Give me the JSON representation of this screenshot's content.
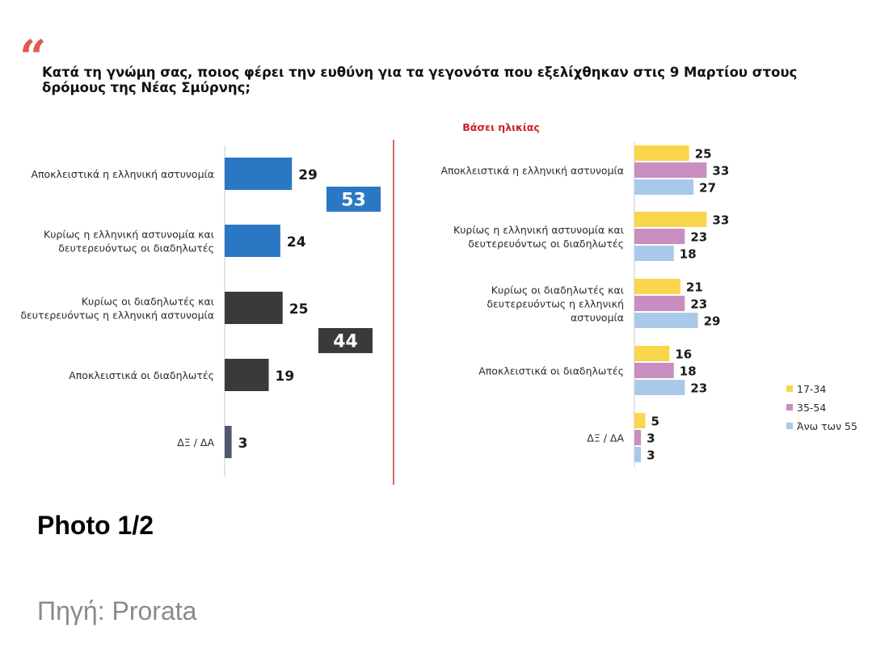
{
  "question": "Κατά τη γνώμη σας, ποιος φέρει την ευθύνη για τα γεγονότα που εξελίχθηκαν στις 9 Μαρτίου στους δρόμους της Νέας Σμύρνης;",
  "quote_mark": "“",
  "subhead": "Βάσει ηλικίας",
  "caption": "Photo 1/2",
  "source": "Πηγή: Prorata",
  "colors": {
    "blue": "#2a78c4",
    "dark": "#3a3a3a",
    "slate": "#4f5b6b",
    "series_17_34": "#f9d64b",
    "series_35_54": "#c98ec0",
    "series_55": "#a9c9ea",
    "accent_red": "#d0202a"
  },
  "chart_data": [
    {
      "type": "bar",
      "orientation": "horizontal",
      "categories": [
        [
          "Αποκλειστικά η ελληνική αστυνομία"
        ],
        [
          "Κυρίως η ελληνική αστυνομία και",
          "δευτερευόντως οι διαδηλωτές"
        ],
        [
          "Κυρίως οι διαδηλωτές και",
          "δευτερευόντως η ελληνική αστυνομία"
        ],
        [
          "Αποκλειστικά οι διαδηλωτές"
        ],
        [
          "ΔΞ / ΔΑ"
        ]
      ],
      "values": [
        29,
        24,
        25,
        19,
        3
      ],
      "bar_colors": [
        "blue",
        "blue",
        "dark",
        "dark",
        "slate"
      ],
      "totals": [
        {
          "label": "53",
          "categories": [
            0,
            1
          ],
          "color": "blue"
        },
        {
          "label": "44",
          "categories": [
            2,
            3
          ],
          "color": "dark"
        }
      ]
    },
    {
      "type": "bar",
      "orientation": "horizontal",
      "title": "Βάσει ηλικίας",
      "categories": [
        [
          "Αποκλειστικά η ελληνική αστυνομία"
        ],
        [
          "Κυρίως η ελληνική αστυνομία και",
          "δευτερευόντως οι διαδηλωτές"
        ],
        [
          "Κυρίως οι διαδηλωτές και",
          "δευτερευόντως η ελληνική",
          "αστυνομία"
        ],
        [
          "Αποκλειστικά οι διαδηλωτές"
        ],
        [
          "ΔΞ / ΔΑ"
        ]
      ],
      "series": [
        {
          "name": "17-34",
          "color": "series_17_34",
          "values": [
            25,
            33,
            21,
            16,
            5
          ]
        },
        {
          "name": "35-54",
          "color": "series_35_54",
          "values": [
            33,
            23,
            23,
            18,
            3
          ]
        },
        {
          "name": "Άνω των 55",
          "color": "series_55",
          "values": [
            27,
            18,
            29,
            23,
            3
          ]
        }
      ],
      "legend_position": "bottom-right"
    }
  ]
}
